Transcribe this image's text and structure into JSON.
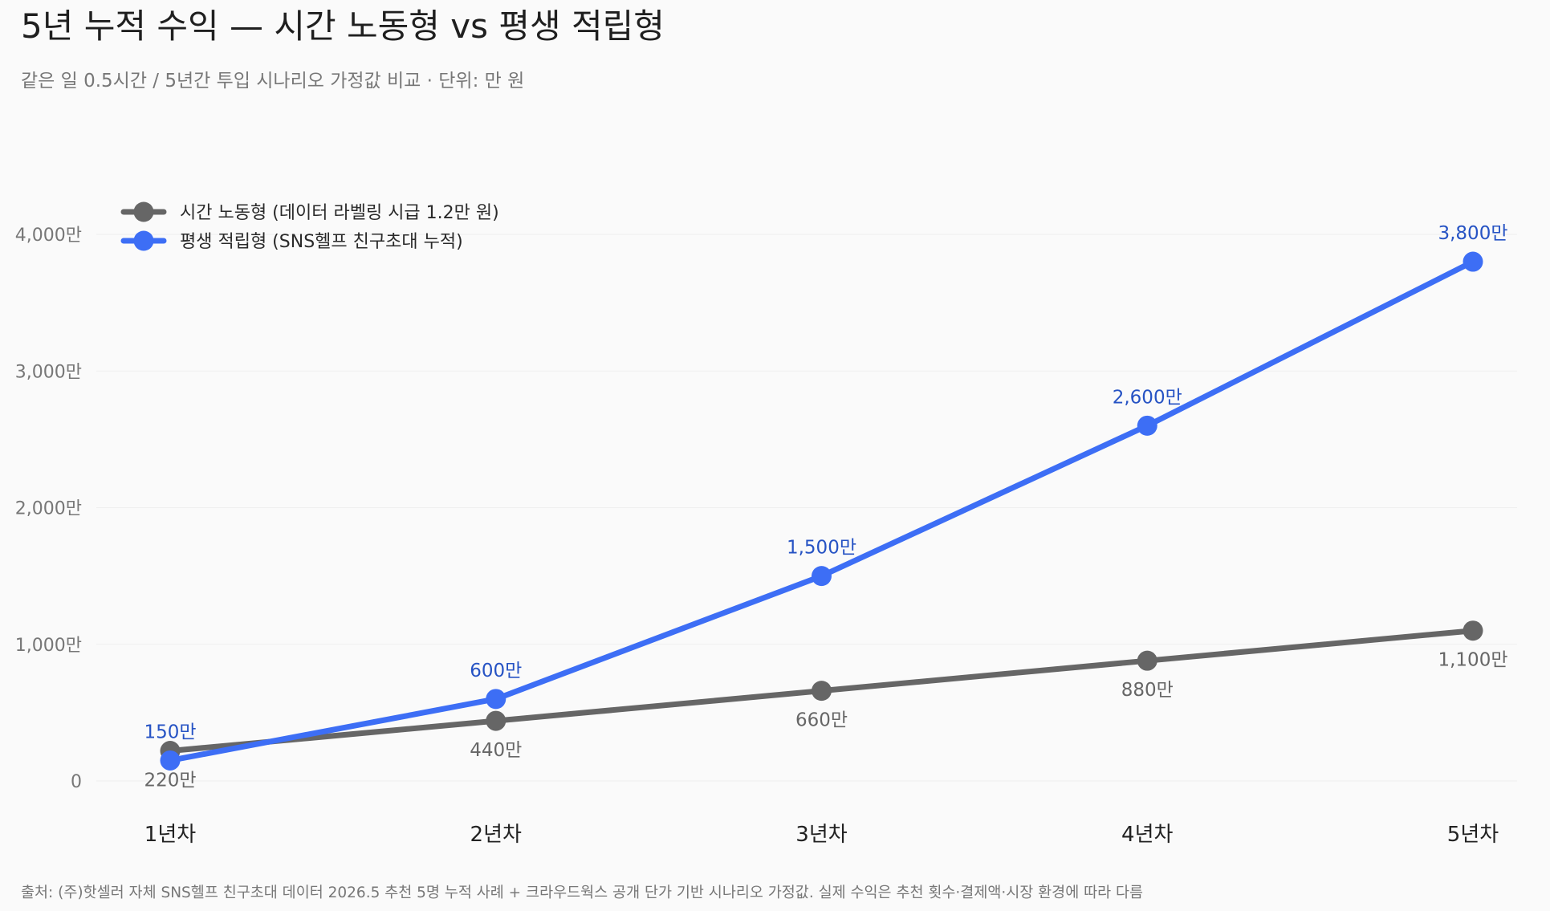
{
  "chart_data": {
    "type": "line",
    "title": "5년 누적 수익 — 시간 노동형 vs 평생 적립형",
    "subtitle": "같은 일 0.5시간 / 5년간 투입 시나리오 가정값 비교 · 단위: 만 원",
    "categories": [
      "1년차",
      "2년차",
      "3년차",
      "4년차",
      "5년차"
    ],
    "ylim": [
      0,
      4000
    ],
    "yticks": [
      {
        "value": 0,
        "label": "0"
      },
      {
        "value": 1000,
        "label": "1,000만"
      },
      {
        "value": 2000,
        "label": "2,000만"
      },
      {
        "value": 3000,
        "label": "3,000만"
      },
      {
        "value": 4000,
        "label": "4,000만"
      }
    ],
    "grid": true,
    "legend_position": "top-left",
    "series": [
      {
        "name": "시간 노동형 (데이터 라벨링 시급 1.2만 원)",
        "color": "#666666",
        "label_color": "#666666",
        "label_placement": "below",
        "values": [
          220,
          440,
          660,
          880,
          1100
        ],
        "labels": [
          "220만",
          "440만",
          "660만",
          "880만",
          "1,100만"
        ]
      },
      {
        "name": "평생 적립형 (SNS헬프 친구초대 누적)",
        "color": "#3d6ef5",
        "label_color": "#2653c4",
        "label_placement": "above",
        "values": [
          150,
          600,
          1500,
          2600,
          3800
        ],
        "labels": [
          "150만",
          "600만",
          "1,500만",
          "2,600만",
          "3,800만"
        ]
      }
    ],
    "footnote": "출처: (주)핫셀러 자체 SNS헬프 친구초대 데이터 2026.5 추천 5명 누적 사례 + 크라우드웍스 공개 단가 기반 시나리오 가정값. 실제 수익은 추천 횟수·결제액·시장 환경에 따라 다름"
  }
}
